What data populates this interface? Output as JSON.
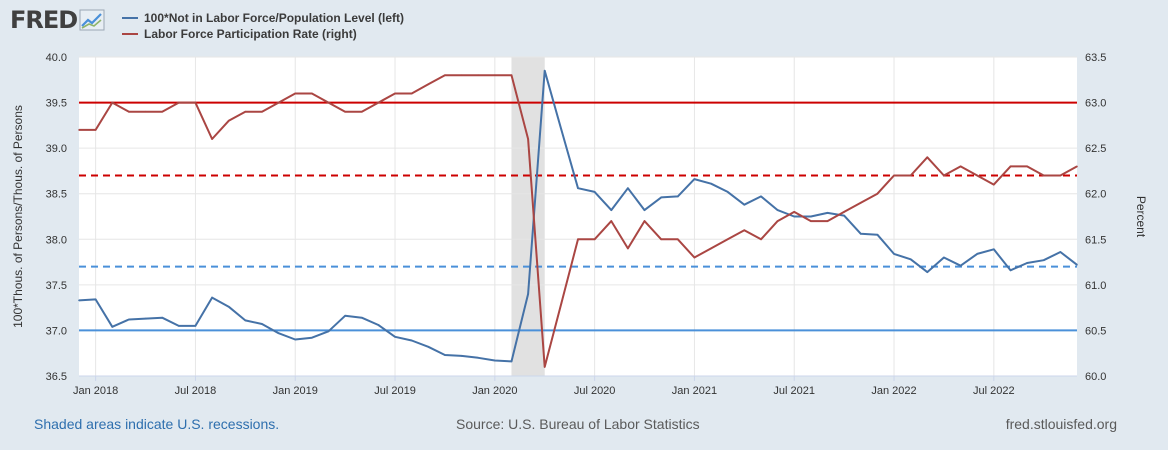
{
  "header": {
    "logo_text": "FRED"
  },
  "colors": {
    "blue": "#4572a7",
    "red": "#aa4643",
    "hline_red": "#cc0000",
    "hline_blue": "#4a90d9"
  },
  "footer": {
    "recession_note": "Shaded areas indicate U.S. recessions.",
    "source": "Source: U.S. Bureau of Labor Statistics",
    "site": "fred.stlouisfed.org"
  },
  "chart_data": {
    "type": "line",
    "y_left": {
      "label": "100*Thous. of Persons/Thous. of Persons",
      "lim": [
        36.5,
        40.0
      ],
      "ticks": [
        36.5,
        37.0,
        37.5,
        38.0,
        38.5,
        39.0,
        39.5,
        40.0
      ]
    },
    "y_right": {
      "label": "Percent",
      "lim": [
        60.0,
        63.5
      ],
      "ticks": [
        60.0,
        60.5,
        61.0,
        61.5,
        62.0,
        62.5,
        63.0,
        63.5
      ]
    },
    "x_ticks": [
      "Jan 2018",
      "Jul 2018",
      "Jan 2019",
      "Jul 2019",
      "Jan 2020",
      "Jul 2020",
      "Jan 2021",
      "Jul 2021",
      "Jan 2022",
      "Jul 2022"
    ],
    "x_start": "2017-12",
    "x_end": "2022-12",
    "recessions": [
      {
        "start": "2020-02",
        "end": "2020-04"
      }
    ],
    "series": [
      {
        "name": "100*Not in Labor Force/Population Level (left)",
        "axis": "left",
        "color": "#4572a7",
        "x": [
          "2017-12",
          "2018-01",
          "2018-02",
          "2018-03",
          "2018-04",
          "2018-05",
          "2018-06",
          "2018-07",
          "2018-08",
          "2018-09",
          "2018-10",
          "2018-11",
          "2018-12",
          "2019-01",
          "2019-02",
          "2019-03",
          "2019-04",
          "2019-05",
          "2019-06",
          "2019-07",
          "2019-08",
          "2019-09",
          "2019-10",
          "2019-11",
          "2019-12",
          "2020-01",
          "2020-02",
          "2020-03",
          "2020-04",
          "2020-05",
          "2020-06",
          "2020-07",
          "2020-08",
          "2020-09",
          "2020-10",
          "2020-11",
          "2020-12",
          "2021-01",
          "2021-02",
          "2021-03",
          "2021-04",
          "2021-05",
          "2021-06",
          "2021-07",
          "2021-08",
          "2021-09",
          "2021-10",
          "2021-11",
          "2021-12",
          "2022-01",
          "2022-02",
          "2022-03",
          "2022-04",
          "2022-05",
          "2022-06",
          "2022-07",
          "2022-08",
          "2022-09",
          "2022-10",
          "2022-11",
          "2022-12"
        ],
        "values": [
          37.33,
          37.34,
          37.04,
          37.12,
          37.13,
          37.14,
          37.05,
          37.05,
          37.36,
          37.26,
          37.11,
          37.07,
          36.97,
          36.9,
          36.92,
          36.99,
          37.16,
          37.14,
          37.06,
          36.93,
          36.89,
          36.82,
          36.73,
          36.72,
          36.7,
          36.67,
          36.66,
          37.4,
          39.85,
          39.2,
          38.56,
          38.52,
          38.32,
          38.56,
          38.32,
          38.46,
          38.47,
          38.66,
          38.61,
          38.52,
          38.38,
          38.47,
          38.32,
          38.25,
          38.25,
          38.29,
          38.26,
          38.06,
          38.05,
          37.84,
          37.78,
          37.64,
          37.8,
          37.71,
          37.84,
          37.89,
          37.66,
          37.74,
          37.77,
          37.86,
          37.72
        ]
      },
      {
        "name": "Labor Force Participation Rate (right)",
        "axis": "right",
        "color": "#aa4643",
        "x": [
          "2017-12",
          "2018-01",
          "2018-02",
          "2018-03",
          "2018-04",
          "2018-05",
          "2018-06",
          "2018-07",
          "2018-08",
          "2018-09",
          "2018-10",
          "2018-11",
          "2018-12",
          "2019-01",
          "2019-02",
          "2019-03",
          "2019-04",
          "2019-05",
          "2019-06",
          "2019-07",
          "2019-08",
          "2019-09",
          "2019-10",
          "2019-11",
          "2019-12",
          "2020-01",
          "2020-02",
          "2020-03",
          "2020-04",
          "2020-05",
          "2020-06",
          "2020-07",
          "2020-08",
          "2020-09",
          "2020-10",
          "2020-11",
          "2020-12",
          "2021-01",
          "2021-02",
          "2021-03",
          "2021-04",
          "2021-05",
          "2021-06",
          "2021-07",
          "2021-08",
          "2021-09",
          "2021-10",
          "2021-11",
          "2021-12",
          "2022-01",
          "2022-02",
          "2022-03",
          "2022-04",
          "2022-05",
          "2022-06",
          "2022-07",
          "2022-08",
          "2022-09",
          "2022-10",
          "2022-11",
          "2022-12"
        ],
        "values": [
          62.7,
          62.7,
          63.0,
          62.9,
          62.9,
          62.9,
          63.0,
          63.0,
          62.6,
          62.8,
          62.9,
          62.9,
          63.0,
          63.1,
          63.1,
          63.0,
          62.9,
          62.9,
          63.0,
          63.1,
          63.1,
          63.2,
          63.3,
          63.3,
          63.3,
          63.3,
          63.3,
          62.6,
          60.1,
          60.8,
          61.5,
          61.5,
          61.7,
          61.4,
          61.7,
          61.5,
          61.5,
          61.3,
          61.4,
          61.5,
          61.6,
          61.5,
          61.7,
          61.8,
          61.7,
          61.7,
          61.8,
          61.9,
          62.0,
          62.2,
          62.2,
          62.4,
          62.2,
          62.3,
          62.2,
          62.1,
          62.3,
          62.3,
          62.2,
          62.2,
          62.3
        ]
      }
    ],
    "reference_lines": [
      {
        "axis": "left",
        "value": 37.0,
        "style": "solid",
        "color": "#4a90d9"
      },
      {
        "axis": "left",
        "value": 37.7,
        "style": "dashed",
        "color": "#4a90d9"
      },
      {
        "axis": "right",
        "value": 63.0,
        "style": "solid",
        "color": "#cc0000"
      },
      {
        "axis": "right",
        "value": 62.2,
        "style": "dashed",
        "color": "#cc0000"
      }
    ]
  }
}
